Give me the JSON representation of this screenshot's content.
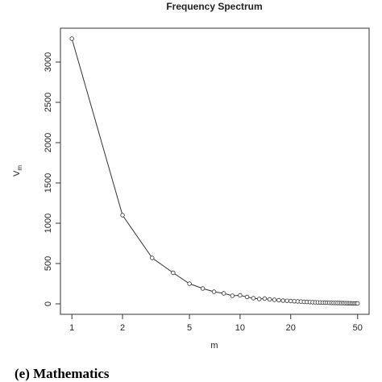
{
  "chart_data": {
    "type": "line",
    "title": "Frequency Spectrum",
    "xlabel": "m",
    "ylabel": {
      "base": "V",
      "subscript": "m"
    },
    "xlog": true,
    "x": [
      1,
      2,
      3,
      4,
      5,
      6,
      7,
      8,
      9,
      10,
      11,
      12,
      13,
      14,
      15,
      16,
      17,
      18,
      19,
      20,
      21,
      22,
      23,
      24,
      25,
      26,
      27,
      28,
      29,
      30,
      31,
      32,
      33,
      34,
      35,
      36,
      37,
      38,
      39,
      40,
      41,
      42,
      43,
      44,
      45,
      46,
      47,
      48,
      49,
      50
    ],
    "values": [
      3290,
      1100,
      570,
      385,
      250,
      190,
      150,
      130,
      100,
      105,
      85,
      70,
      60,
      65,
      55,
      50,
      45,
      40,
      38,
      35,
      32,
      30,
      28,
      25,
      24,
      22,
      20,
      19,
      18,
      17,
      16,
      15,
      14,
      13,
      12,
      12,
      11,
      10,
      10,
      9,
      9,
      8,
      8,
      7,
      7,
      6,
      6,
      6,
      5,
      5
    ],
    "color": "#333333",
    "xlim": [
      0.855,
      58.5
    ],
    "xticks": [
      1,
      2,
      5,
      10,
      20,
      50
    ],
    "ylim": [
      -130,
      3420
    ],
    "yticks": [
      0,
      500,
      1000,
      1500,
      2000,
      2500,
      3000
    ]
  },
  "caption": "(e) Mathematics"
}
